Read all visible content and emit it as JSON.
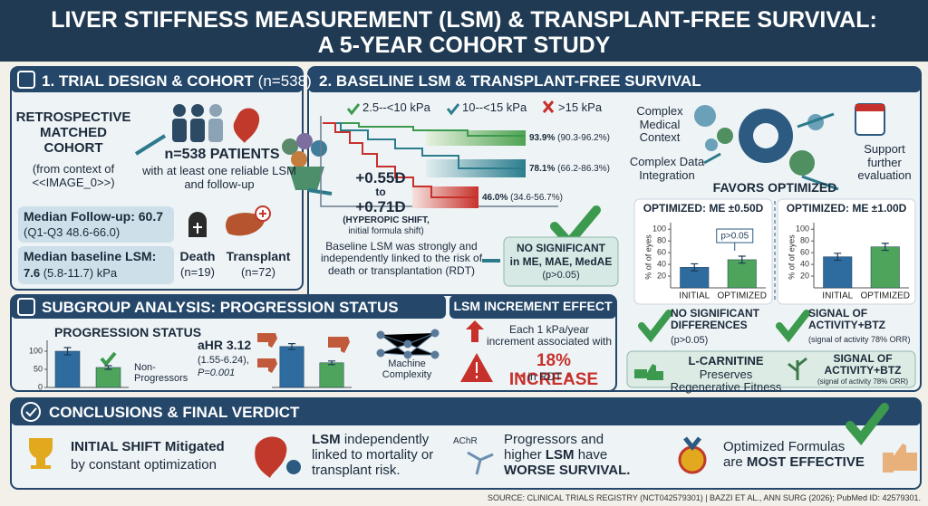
{
  "header": {
    "title_line1": "LIVER STIFFNESS MEASUREMENT (LSM) & TRANSPLANT-FREE SURVIVAL:",
    "title_line2": "A 5-YEAR COHORT STUDY"
  },
  "trial_design": {
    "heading": "1. TRIAL DESIGN & COHORT",
    "heading_n": "(n=538)",
    "cohort": "RETROSPECTIVE MATCHED COHORT",
    "cohort_note": "(from context of <<IMAGE_0>>)",
    "patients": "n=538 PATIENTS",
    "patients_note": "with at least one reliable LSM and follow-up",
    "followup": {
      "label": "Median Follow-up: 60.7",
      "detail": "(Q1-Q3 48.6-66.0)"
    },
    "baseline": {
      "label": "Median baseline LSM:",
      "value": "7.6",
      "detail": "(5.8-11.7) kPa"
    },
    "outcomes": [
      {
        "label": "Death",
        "count": "(n=19)"
      },
      {
        "label": "Transplant",
        "count": "(n=72)"
      }
    ]
  },
  "survival": {
    "heading": "2. BASELINE LSM & TRANSPLANT-FREE SURVIVAL",
    "legend": [
      "2.5--<10 kPa",
      "10--<15 kPa",
      ">15 kPa"
    ],
    "curves": [
      {
        "estimate": "93.9%",
        "ci": "(90.3-96.2%)"
      },
      {
        "estimate": "78.1%",
        "ci": "(66.2-86.3%)"
      },
      {
        "estimate": "46.0%",
        "ci": "(34.6-56.7%)"
      }
    ],
    "shift": {
      "from": "+0.55D",
      "to_word": "to",
      "to": "+0.71D",
      "label": "(HYPEROPIC SHIFT,",
      "note": "initial formula shift)"
    },
    "finding": "Baseline LSM was strongly and independently linked to the risk of death or transplantation (RDT)",
    "result": {
      "title": "NO SIGNIFICANT",
      "metrics": "in ME, MAE, MedAE",
      "p": "(p>0.05)"
    },
    "context": {
      "medical": "Complex Medical Context",
      "data": "Complex Data Integration",
      "support": "Support further evaluation",
      "verdict": "FAVORS OPTIMIZED"
    },
    "charts": [
      {
        "type": "bar",
        "title": "OPTIMIZED: ME ±0.50D",
        "y_label": "% of of eyes",
        "categories": [
          "INITIAL",
          "OPTIMIZED"
        ],
        "values": [
          35,
          48
        ],
        "errors": [
          6,
          6
        ],
        "colors": [
          "#2e6b9e",
          "#4ea45a"
        ],
        "annotation": "p>0.05",
        "ylim": [
          0,
          105
        ],
        "yticks": [
          20,
          40,
          60,
          80,
          100
        ]
      },
      {
        "type": "bar",
        "title": "OPTIMIZED: ME ±1.00D",
        "y_label": "% of of eyes",
        "categories": [
          "INITIAL",
          "OPTIMIZED"
        ],
        "values": [
          53,
          70
        ],
        "errors": [
          6,
          6
        ],
        "colors": [
          "#2e6b9e",
          "#4ea45a"
        ],
        "ylim": [
          0,
          105
        ],
        "yticks": [
          20,
          40,
          60,
          80,
          100
        ]
      }
    ],
    "verdicts": [
      {
        "title": "NO SIGNIFICANT DIFFERENCES",
        "note": "(p>0.05)"
      },
      {
        "title": "SIGNAL OF ACTIVITY+BTZ",
        "note": "(signal of activity 78% ORR)"
      }
    ],
    "footer": {
      "lcarnitine": "L-CARNITINE",
      "lcarnitine_text": " Preserves Regenerative Fitness",
      "signal": "SIGNAL OF ACTIVITY+BTZ",
      "signal_note": "(signal of activity 78% ORR)"
    }
  },
  "subgroup": {
    "heading": "SUBGROUP ANALYSIS: PROGRESSION STATUS",
    "charts": [
      {
        "type": "bar",
        "title": "PROGRESSION STATUS",
        "values": [
          100,
          55
        ],
        "errors": [
          10,
          5
        ],
        "colors": [
          "#2e6b9e",
          "#4ea45a"
        ],
        "ylim": [
          0,
          120
        ],
        "yticks": [
          0,
          50,
          100
        ]
      },
      {
        "type": "bar",
        "values": [
          113,
          68
        ],
        "errors": [
          8,
          5
        ],
        "colors": [
          "#2e6b9e",
          "#4ea45a"
        ],
        "ylim": [
          0,
          120
        ]
      }
    ],
    "group_label": "Non-Progressors",
    "ahr": "aHR 3.12",
    "ahr_ci": "(1.55-6.24),",
    "p": "P=0.001",
    "model": "Machine Complexity"
  },
  "increment": {
    "heading": "LSM INCREMENT EFFECT",
    "text": "Each 1 kPa/year increment associated with",
    "effect": "18% INCREASE",
    "outcome": "in RDT"
  },
  "conclusions": {
    "heading": "CONCLUSIONS & FINAL VERDICT",
    "items": [
      {
        "parts": [
          "INITIAL SHIFT Mitigated",
          "by constant optimization"
        ]
      },
      {
        "parts": [
          "LSM",
          " independently linked to mortality or transplant risk."
        ]
      },
      {
        "label": "AChR",
        "parts": [
          "Progressors and higher ",
          "LSM",
          " have ",
          "WORSE SURVIVAL."
        ]
      },
      {
        "parts": [
          "Optimized Formulas are ",
          "MOST EFFECTIVE"
        ]
      }
    ]
  },
  "source": "SOURCE: CLINICAL TRIALS REGISTRY (NCT042579301) | BAZZI ET AL., ANN SURG (2026); PubMed ID: 42579301."
}
